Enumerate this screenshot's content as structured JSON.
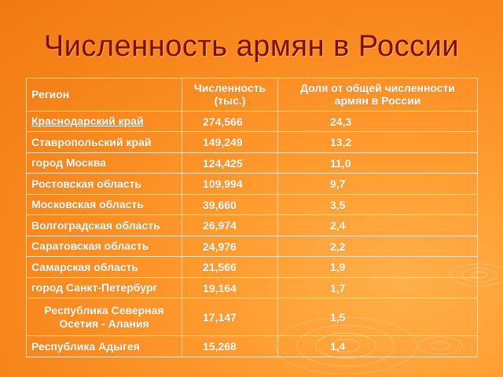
{
  "title": "Численность армян в России",
  "table": {
    "headers": {
      "region": "Регион",
      "count_line1": "Численность",
      "count_line2": "(тыс.)",
      "share_line1": "Доля от общей численности",
      "share_line2": "армян в России"
    },
    "rows": [
      {
        "region": "Краснодарский край",
        "region2": "",
        "count": "274,566",
        "share": "24,3",
        "link": true
      },
      {
        "region": "Ставропольский край",
        "region2": "",
        "count": "149,249",
        "share": "13,2"
      },
      {
        "region": "город Москва",
        "region2": "",
        "count": "124,425",
        "share": "11,0"
      },
      {
        "region": "Ростовская область",
        "region2": "",
        "count": "109,994",
        "share": "9,7"
      },
      {
        "region": "Московская область",
        "region2": "",
        "count": "39,660",
        "share": "3,5"
      },
      {
        "region": "Волгоградская область",
        "region2": "",
        "count": "26,974",
        "share": "2,4"
      },
      {
        "region": "Саратовская область",
        "region2": "",
        "count": "24,976",
        "share": "2,2"
      },
      {
        "region": "Самарская область",
        "region2": "",
        "count": "21,566",
        "share": "1,9"
      },
      {
        "region": "город Санкт-Петербург",
        "region2": "",
        "count": "19,164",
        "share": "1,7"
      },
      {
        "region": "Республика Северная",
        "region2": "Осетия - Алания",
        "count": "17,147",
        "share": "1,5"
      },
      {
        "region": "Республика Адыгея",
        "region2": "",
        "count": "15,268",
        "share": "1,4"
      }
    ]
  }
}
